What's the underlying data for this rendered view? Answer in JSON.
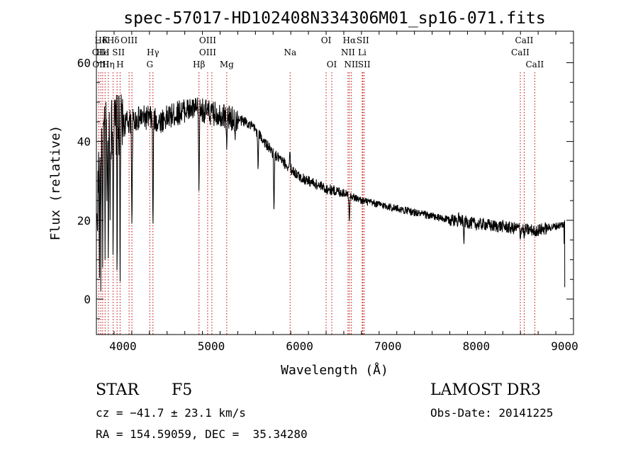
{
  "chart_data": {
    "type": "line",
    "title": "spec-57017-HD102408N334306M01_sp16-071.fits",
    "xlabel": "Wavelength (Å)",
    "ylabel": "Flux (relative)",
    "xlim": [
      3700,
      9100
    ],
    "ylim": [
      -9,
      68
    ],
    "xticks": [
      4000,
      5000,
      6000,
      7000,
      8000,
      9000
    ],
    "xtick_labels": [
      "4000",
      "5000",
      "6000",
      "7000",
      "8000",
      "9000"
    ],
    "yticks": [
      0,
      20,
      40,
      60
    ],
    "ytick_labels": [
      "0",
      "20",
      "40",
      "60"
    ],
    "grid": false,
    "line_color": "#000000",
    "marker_color": "#c00000",
    "continuum": [
      [
        3705,
        18
      ],
      [
        3730,
        36
      ],
      [
        3760,
        40
      ],
      [
        3800,
        42
      ],
      [
        3850,
        43
      ],
      [
        3900,
        44
      ],
      [
        3950,
        44
      ],
      [
        4000,
        44
      ],
      [
        4050,
        45
      ],
      [
        4100,
        45
      ],
      [
        4200,
        46
      ],
      [
        4300,
        46
      ],
      [
        4400,
        45
      ],
      [
        4500,
        46
      ],
      [
        4600,
        47
      ],
      [
        4700,
        48
      ],
      [
        4800,
        48
      ],
      [
        4900,
        48
      ],
      [
        5000,
        47
      ],
      [
        5100,
        47
      ],
      [
        5200,
        46
      ],
      [
        5300,
        45.5
      ],
      [
        5400,
        45
      ],
      [
        5500,
        43
      ],
      [
        5600,
        40
      ],
      [
        5700,
        37
      ],
      [
        5800,
        35
      ],
      [
        5900,
        33
      ],
      [
        6000,
        31
      ],
      [
        6100,
        30
      ],
      [
        6200,
        29
      ],
      [
        6300,
        28
      ],
      [
        6400,
        27.5
      ],
      [
        6500,
        27
      ],
      [
        6600,
        26
      ],
      [
        6700,
        25
      ],
      [
        6800,
        24.5
      ],
      [
        6900,
        24
      ],
      [
        7000,
        23.5
      ],
      [
        7100,
        23
      ],
      [
        7200,
        22.5
      ],
      [
        7300,
        22
      ],
      [
        7400,
        21.5
      ],
      [
        7500,
        21
      ],
      [
        7600,
        20.5
      ],
      [
        7700,
        20
      ],
      [
        7800,
        20
      ],
      [
        7900,
        19.5
      ],
      [
        8000,
        19
      ],
      [
        8100,
        19
      ],
      [
        8200,
        18.5
      ],
      [
        8300,
        18.5
      ],
      [
        8400,
        18
      ],
      [
        8500,
        18
      ],
      [
        8600,
        17.5
      ],
      [
        8700,
        17.5
      ],
      [
        8800,
        18
      ],
      [
        8900,
        18.5
      ],
      [
        8990,
        19
      ]
    ],
    "absorption_dips": [
      [
        3734,
        0
      ],
      [
        3750,
        2
      ],
      [
        3771,
        8
      ],
      [
        3798,
        10
      ],
      [
        3820,
        22
      ],
      [
        3835,
        4
      ],
      [
        3855,
        20
      ],
      [
        3889,
        6
      ],
      [
        3934,
        0
      ],
      [
        3968,
        -3
      ],
      [
        4102,
        16
      ],
      [
        4340,
        16
      ],
      [
        4861,
        25
      ],
      [
        5175,
        38
      ],
      [
        5270,
        40
      ],
      [
        5530,
        32
      ],
      [
        5710,
        21
      ],
      [
        5890,
        38
      ],
      [
        6563,
        19
      ],
      [
        7800,
        22
      ],
      [
        7860,
        14
      ],
      [
        8498,
        15
      ],
      [
        8542,
        15
      ],
      [
        8662,
        16
      ],
      [
        9000,
        3
      ]
    ],
    "line_markers": [
      {
        "label": "Hδ",
        "wavelength": 3750,
        "row": 1
      },
      {
        "label": "K",
        "wavelength": 3800,
        "row": 1
      },
      {
        "label": "Hδ",
        "wavelength": 3890,
        "row": 1
      },
      {
        "label": "OIII",
        "wavelength": 4070,
        "row": 1
      },
      {
        "label": "OIII",
        "wavelength": 4959,
        "row": 1
      },
      {
        "label": "OI",
        "wavelength": 6300,
        "row": 1
      },
      {
        "label": "Hα",
        "wavelength": 6563,
        "row": 1
      },
      {
        "label": "SII",
        "wavelength": 6716,
        "row": 1
      },
      {
        "label": "CaII",
        "wavelength": 8542,
        "row": 1
      },
      {
        "label": "OII",
        "wavelength": 3727,
        "row": 2
      },
      {
        "label": "He",
        "wavelength": 3771,
        "row": 2
      },
      {
        "label": "I",
        "wavelength": 3830,
        "row": 2
      },
      {
        "label": "SII",
        "wavelength": 3950,
        "row": 2
      },
      {
        "label": "Hγ",
        "wavelength": 4340,
        "row": 2
      },
      {
        "label": "OIII",
        "wavelength": 4959,
        "row": 2
      },
      {
        "label": "Na",
        "wavelength": 5893,
        "row": 2
      },
      {
        "label": "NII",
        "wavelength": 6548,
        "row": 2
      },
      {
        "label": "Li",
        "wavelength": 6708,
        "row": 2
      },
      {
        "label": "CaII",
        "wavelength": 8498,
        "row": 2
      },
      {
        "label": "OIII",
        "wavelength": 3750,
        "row": 3
      },
      {
        "label": "Hη",
        "wavelength": 3835,
        "row": 3
      },
      {
        "label": "H",
        "wavelength": 3968,
        "row": 3
      },
      {
        "label": "G",
        "wavelength": 4304,
        "row": 3
      },
      {
        "label": "Hβ",
        "wavelength": 4861,
        "row": 3
      },
      {
        "label": "Mg",
        "wavelength": 5175,
        "row": 3
      },
      {
        "label": "OI",
        "wavelength": 6364,
        "row": 3
      },
      {
        "label": "NII",
        "wavelength": 6584,
        "row": 3
      },
      {
        "label": "SII",
        "wavelength": 6731,
        "row": 3
      },
      {
        "label": "CaII",
        "wavelength": 8662,
        "row": 3
      }
    ],
    "marker_lines": [
      3727,
      3750,
      3771,
      3798,
      3835,
      3889,
      3934,
      3968,
      4070,
      4102,
      4304,
      4340,
      4861,
      4959,
      5007,
      5175,
      5893,
      6300,
      6364,
      6548,
      6563,
      6584,
      6708,
      6716,
      6731,
      8498,
      8542,
      8662
    ]
  },
  "footer": {
    "object_class": "STAR",
    "subclass": "F5",
    "survey": "LAMOST DR3",
    "redshift_text": "cz = −41.7 ± 23.1 km/s",
    "obs_date_text": "Obs-Date: 20141225",
    "coords_text": "RA = 154.59059, DEC =  35.34280"
  }
}
